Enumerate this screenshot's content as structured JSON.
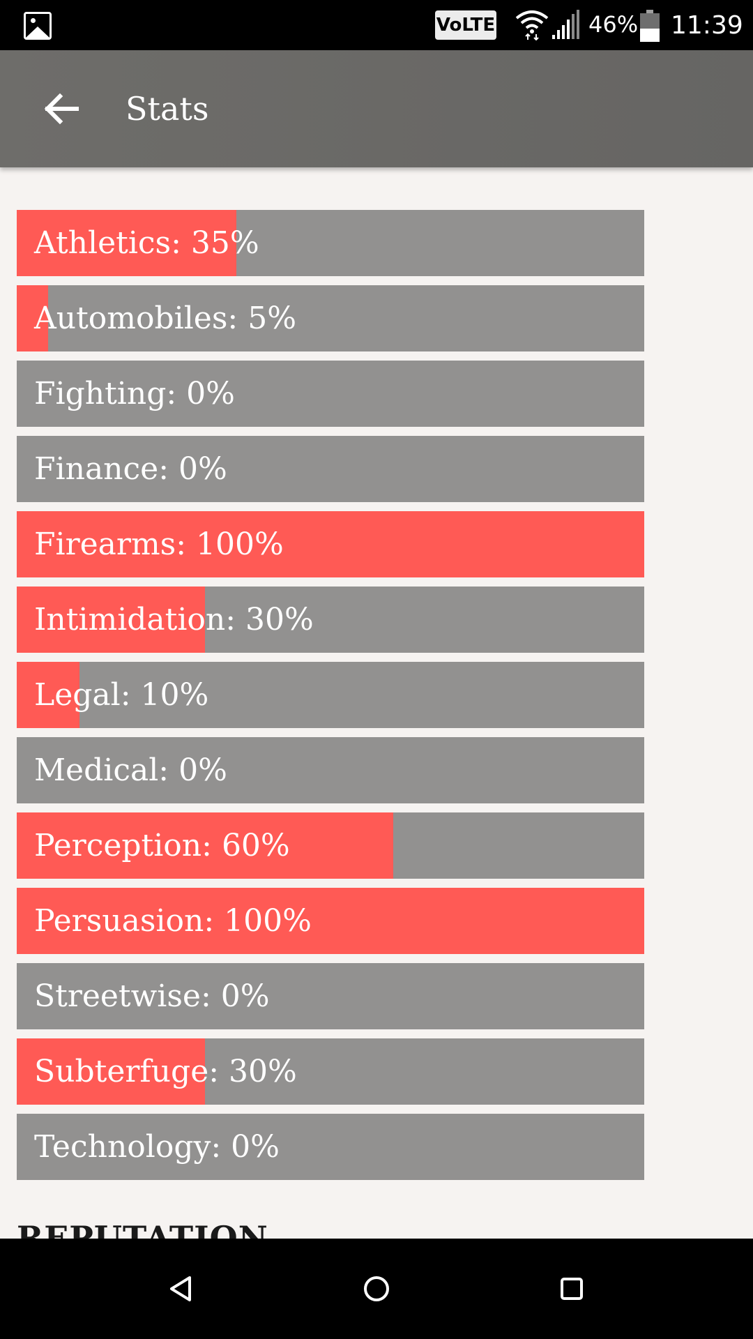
{
  "status_bar": {
    "network_badge": "VoLTE",
    "battery_percent": "46%",
    "battery_level": 0.46,
    "time": "11:39",
    "icons": [
      "gallery-notification-icon",
      "wifi-icon",
      "cellular-signal-icon",
      "battery-icon"
    ]
  },
  "app_bar": {
    "title": "Stats",
    "back_icon": "arrow-back-icon"
  },
  "colors": {
    "fill": "#ff5a55",
    "track": "#929190",
    "app_bar": "#6a6967",
    "background": "#f6f3f1"
  },
  "stats": [
    {
      "label": "Athletics: 35%",
      "value": 35
    },
    {
      "label": "Automobiles: 5%",
      "value": 5
    },
    {
      "label": "Fighting: 0%",
      "value": 0
    },
    {
      "label": "Finance: 0%",
      "value": 0
    },
    {
      "label": "Firearms: 100%",
      "value": 100
    },
    {
      "label": "Intimidation: 30%",
      "value": 30
    },
    {
      "label": "Legal: 10%",
      "value": 10
    },
    {
      "label": "Medical: 0%",
      "value": 0
    },
    {
      "label": "Perception: 60%",
      "value": 60
    },
    {
      "label": "Persuasion: 100%",
      "value": 100
    },
    {
      "label": "Streetwise: 0%",
      "value": 0
    },
    {
      "label": "Subterfuge: 30%",
      "value": 30
    },
    {
      "label": "Technology: 0%",
      "value": 0
    }
  ],
  "next_section": {
    "heading": "REPUTATION"
  },
  "nav_bar": {
    "buttons": [
      "back-triangle-icon",
      "home-circle-icon",
      "recents-square-icon"
    ]
  }
}
